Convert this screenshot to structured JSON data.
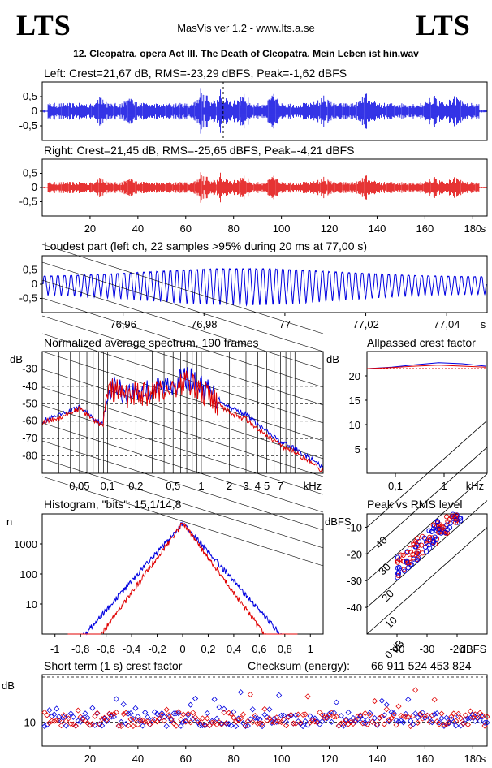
{
  "header": {
    "logo_left": "LTS",
    "logo_right": "LTS",
    "app": "MasVis ver 1.2 - www.lts.a.se",
    "file": "12. Cleopatra, opera Act III. The Death of Cleopatra. Mein Leben ist hin.wav"
  },
  "colors": {
    "left": "#0000e0",
    "right": "#e00000"
  },
  "chart_data": [
    {
      "type": "line",
      "title": "Left: Crest=21,67 dB, RMS=-23,29 dBFS, Peak=-1,62 dBFS",
      "yticks": [
        "0,5",
        "0",
        "-0,5"
      ],
      "ylim": [
        -1,
        1
      ],
      "xlim": [
        0,
        186
      ],
      "series": [
        {
          "name": "Left",
          "color": "#0000e0"
        }
      ]
    },
    {
      "type": "line",
      "title": "Right: Crest=21,45 dB, RMS=-25,65 dBFS, Peak=-4,21 dBFS",
      "yticks": [
        "0,5",
        "0",
        "-0,5"
      ],
      "ylim": [
        -1,
        1
      ],
      "xlim": [
        0,
        186
      ],
      "xticks": [
        "20",
        "40",
        "60",
        "80",
        "100",
        "120",
        "140",
        "160",
        "180"
      ],
      "xunit": "s",
      "series": [
        {
          "name": "Right",
          "color": "#e00000"
        }
      ]
    },
    {
      "type": "line",
      "title": "Loudest part (left  ch, 22 samples >95% during 20 ms at 77,00 s)",
      "yticks": [
        "0,5",
        "0",
        "-0,5"
      ],
      "xticks": [
        "76,96",
        "76,98",
        "77",
        "77,02",
        "77,04"
      ],
      "xunit": "s",
      "xlim": [
        76.94,
        77.05
      ]
    },
    {
      "type": "line",
      "title": "Normalized average spectrum, 190 frames",
      "ylabel": "dB",
      "yticks": [
        "-30",
        "-40",
        "-50",
        "-60",
        "-70",
        "-80"
      ],
      "xticks": [
        "0,05",
        "0,1",
        "0,2",
        "0,5",
        "1",
        "2",
        "3",
        "4",
        "5",
        "7"
      ],
      "xunit": "kHz",
      "ylim": [
        -90,
        -20
      ],
      "freq_khz": [
        0.02,
        0.03,
        0.05,
        0.07,
        0.09,
        0.1,
        0.12,
        0.15,
        0.2,
        0.3,
        0.5,
        0.7,
        1,
        1.5,
        2,
        3,
        4,
        5,
        7,
        10,
        15,
        20
      ],
      "left_db": [
        -60,
        -57,
        -52,
        -58,
        -62,
        -42,
        -40,
        -44,
        -43,
        -42,
        -38,
        -35,
        -40,
        -47,
        -52,
        -56,
        -62,
        -66,
        -72,
        -76,
        -82,
        -87
      ],
      "right_db": [
        -61,
        -58,
        -53,
        -59,
        -63,
        -43,
        -42,
        -46,
        -44,
        -45,
        -40,
        -37,
        -43,
        -50,
        -55,
        -59,
        -64,
        -68,
        -74,
        -78,
        -84,
        -89
      ]
    },
    {
      "type": "line",
      "title": "Allpassed crest factor",
      "ylabel": "dB",
      "yticks": [
        "20",
        "15",
        "10",
        "5"
      ],
      "xticks": [
        "0,1",
        "1"
      ],
      "xunit": "kHz",
      "ylim": [
        0,
        25
      ],
      "left_db": [
        21.5,
        21.8,
        22.3,
        22.7,
        22.5,
        22.0
      ],
      "right_db": [
        21.5,
        21.7,
        22.0,
        22.2,
        22.0,
        21.8
      ],
      "dotted_ref": 21.5
    },
    {
      "type": "area",
      "title": "Histogram, \"bits\": 15,1/14,8",
      "ylabel": "n",
      "yticks": [
        "1000",
        "100",
        "10"
      ],
      "xticks": [
        "-1",
        "-0,8",
        "-0,6",
        "-0,4",
        "-0,2",
        "0",
        "0,2",
        "0,4",
        "0,6",
        "0,8",
        "1"
      ],
      "xlim": [
        -1.1,
        1.1
      ]
    },
    {
      "type": "scatter",
      "title": "Peak vs RMS level",
      "ylabel": "dBFS",
      "yticks": [
        "-10",
        "-20",
        "-30",
        "-40"
      ],
      "xticks": [
        "-40",
        "-30",
        "-20"
      ],
      "xunit": "dBFS",
      "diag_labels": [
        "40",
        "30",
        "20",
        "10",
        "0 dB"
      ]
    },
    {
      "type": "scatter",
      "title": "Short term (1 s) crest factor",
      "checksum_label": "Checksum (energy):",
      "checksum": "66 911 524 453 824",
      "ylabel": "dB",
      "yticks": [
        "10"
      ],
      "xticks": [
        "20",
        "40",
        "60",
        "80",
        "100",
        "120",
        "140",
        "160",
        "180"
      ],
      "xunit": "s"
    }
  ]
}
